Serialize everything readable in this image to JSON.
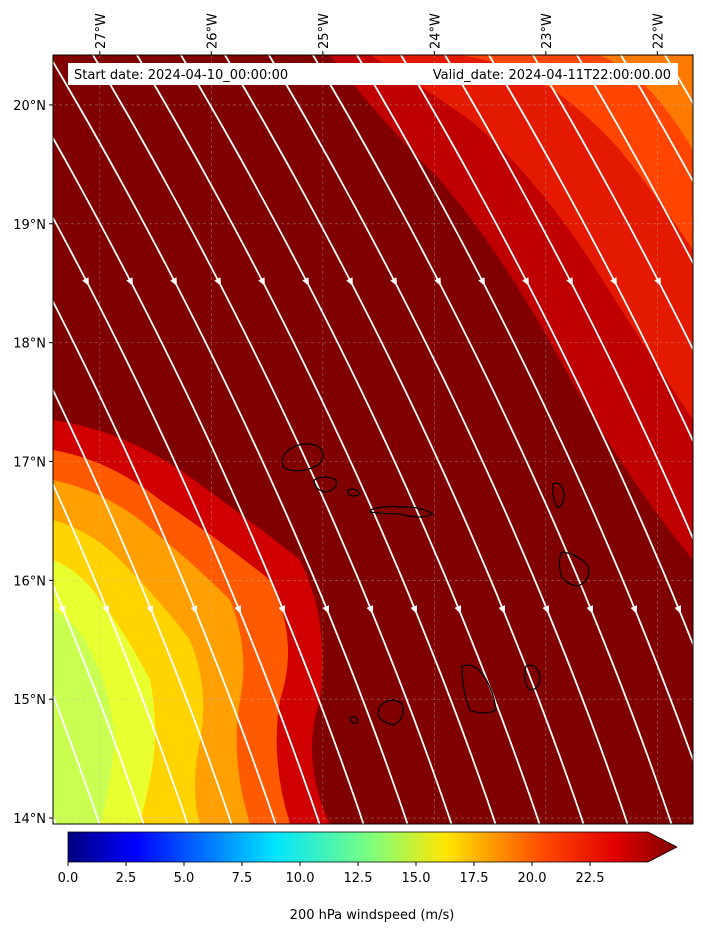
{
  "map": {
    "start_label": "Start date: 2024-04-10_00:00:00",
    "valid_label": "Valid_date: 2024-04-11T22:00:00.00",
    "lon_ticks": [
      {
        "lon": -27,
        "label": "27°W"
      },
      {
        "lon": -26,
        "label": "26°W"
      },
      {
        "lon": -25,
        "label": "25°W"
      },
      {
        "lon": -24,
        "label": "24°W"
      },
      {
        "lon": -23,
        "label": "23°W"
      },
      {
        "lon": -22,
        "label": "22°W"
      }
    ],
    "lat_ticks": [
      {
        "lat": 20,
        "label": "20°N"
      },
      {
        "lat": 19,
        "label": "19°N"
      },
      {
        "lat": 18,
        "label": "18°N"
      },
      {
        "lat": 17,
        "label": "17°N"
      },
      {
        "lat": 16,
        "label": "16°N"
      },
      {
        "lat": 15,
        "label": "15°N"
      },
      {
        "lat": 14,
        "label": "14°N"
      }
    ],
    "extent": {
      "lon_min": -27.42,
      "lon_max": -21.68,
      "lat_min": 13.95,
      "lat_max": 20.42
    },
    "field": "200 hPa windspeed",
    "colormap": "jet",
    "streamline_color": "#ffffff",
    "gridlines": true
  },
  "colorbar": {
    "label": "200 hPa windspeed (m/s)",
    "min": 0,
    "max": 25,
    "extend": "max",
    "ticks": [
      "0.0",
      "2.5",
      "5.0",
      "7.5",
      "10.0",
      "12.5",
      "15.0",
      "17.5",
      "20.0",
      "22.5"
    ]
  }
}
